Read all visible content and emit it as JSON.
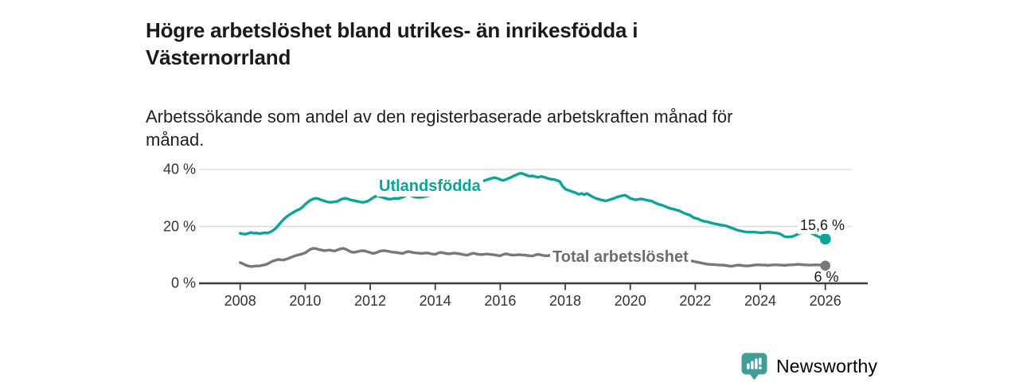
{
  "header": {
    "title": "Högre arbetslöshet bland utrikes- än inrikesfödda i Västernorrland",
    "subtitle": "Arbetssökande som andel av den registerbaserade arbetskraften månad för månad."
  },
  "footer": {
    "brand": "Newsworthy",
    "logo_icon": "bar-chart-speech-bubble",
    "brand_color": "#3f9e9a"
  },
  "colors": {
    "series_utlandsfodda": "#0ca496",
    "series_total": "#787878",
    "series_total_label": "#6d6d6d",
    "axis_line": "#3d3d3d",
    "gridline": "#d8d8d8",
    "tick_text": "#333333",
    "annotation_text": "#1a1a1a"
  },
  "chart_data": {
    "type": "line",
    "unit": "%",
    "grid": "horizontal",
    "legend_position": "inline-labels",
    "ylim": [
      0,
      40
    ],
    "x_range_years": [
      2008,
      2026.08
    ],
    "y_ticks": [
      {
        "value": 40,
        "label": "40 %"
      },
      {
        "value": 20,
        "label": "20 %"
      },
      {
        "value": 0,
        "label": "0 %"
      }
    ],
    "x_ticks": [
      {
        "value": 2008,
        "label": "2008"
      },
      {
        "value": 2010,
        "label": "2010"
      },
      {
        "value": 2012,
        "label": "2012"
      },
      {
        "value": 2014,
        "label": "2014"
      },
      {
        "value": 2016,
        "label": "2016"
      },
      {
        "value": 2018,
        "label": "2018"
      },
      {
        "value": 2020,
        "label": "2020"
      },
      {
        "value": 2022,
        "label": "2022"
      },
      {
        "value": 2024,
        "label": "2024"
      },
      {
        "value": 2026,
        "label": "2026"
      }
    ],
    "series": [
      {
        "name": "Utlandsfödda",
        "color": "#0ca496",
        "end_label": "15,6 %",
        "end_value": 15.6,
        "start_year": 2008,
        "interval_months": 1,
        "values": [
          17.6,
          17.4,
          17.3,
          17.6,
          17.9,
          17.6,
          17.7,
          17.5,
          17.6,
          17.8,
          17.7,
          18.0,
          18.5,
          19.2,
          20.3,
          21.4,
          22.4,
          23.3,
          24.0,
          24.6,
          25.2,
          25.7,
          26.1,
          26.8,
          27.8,
          28.6,
          29.3,
          29.7,
          29.9,
          29.7,
          29.3,
          29.0,
          28.7,
          28.5,
          28.6,
          28.7,
          28.9,
          29.4,
          29.8,
          29.9,
          29.6,
          29.3,
          29.1,
          28.9,
          28.7,
          28.5,
          28.6,
          28.9,
          29.4,
          30.1,
          30.6,
          30.7,
          30.4,
          30.1,
          29.8,
          29.6,
          29.7,
          29.9,
          29.8,
          30.0,
          30.3,
          30.8,
          31.1,
          30.9,
          30.5,
          30.3,
          30.2,
          30.3,
          30.5,
          30.7,
          30.9,
          31.2,
          31.6,
          32.0,
          32.3,
          32.2,
          32.0,
          32.1,
          32.4,
          32.6,
          32.8,
          33.0,
          33.3,
          33.8,
          34.4,
          34.9,
          35.3,
          35.5,
          35.7,
          35.9,
          36.1,
          36.4,
          36.7,
          37.0,
          37.2,
          36.9,
          36.5,
          36.2,
          36.5,
          36.9,
          37.3,
          37.8,
          38.2,
          38.6,
          38.7,
          38.3,
          37.9,
          37.7,
          37.8,
          37.5,
          37.3,
          37.6,
          37.4,
          37.1,
          36.8,
          36.6,
          36.5,
          36.2,
          35.8,
          34.2,
          33.2,
          32.8,
          32.5,
          32.1,
          31.8,
          31.3,
          31.6,
          31.2,
          31.6,
          31.0,
          30.5,
          30.0,
          29.7,
          29.4,
          29.2,
          29.0,
          29.3,
          29.6,
          29.9,
          30.3,
          30.6,
          30.8,
          31.0,
          30.5,
          29.9,
          29.6,
          29.4,
          29.5,
          29.7,
          29.5,
          29.3,
          29.1,
          28.9,
          28.4,
          28.0,
          27.7,
          27.4,
          27.0,
          26.6,
          26.3,
          26.1,
          25.8,
          25.6,
          25.1,
          24.6,
          24.3,
          24.0,
          23.3,
          22.9,
          22.7,
          22.2,
          21.9,
          21.7,
          21.5,
          21.2,
          21.0,
          20.8,
          20.6,
          20.4,
          20.3,
          20.0,
          19.6,
          19.3,
          18.9,
          18.6,
          18.4,
          18.2,
          18.0,
          18.0,
          18.0,
          18.0,
          17.9,
          17.8,
          17.8,
          17.9,
          18.0,
          17.9,
          17.8,
          17.7,
          17.5,
          17.0,
          16.4,
          16.3,
          16.4,
          16.5,
          16.9,
          17.4,
          17.8,
          18.1,
          18.3,
          18.0,
          17.6,
          17.1,
          16.6,
          16.2,
          15.8,
          15.6
        ]
      },
      {
        "name": "Total arbetslöshet",
        "color": "#787878",
        "end_label": "6 %",
        "end_value": 6.2,
        "start_year": 2008,
        "interval_months": 1,
        "values": [
          7.3,
          6.9,
          6.4,
          6.1,
          5.9,
          6.0,
          6.1,
          6.1,
          6.3,
          6.5,
          6.8,
          7.3,
          7.8,
          8.1,
          8.4,
          8.3,
          8.2,
          8.5,
          8.8,
          9.2,
          9.6,
          9.9,
          10.1,
          10.4,
          10.7,
          11.4,
          12.0,
          12.3,
          12.2,
          11.9,
          11.7,
          11.5,
          11.6,
          11.7,
          11.5,
          11.4,
          11.8,
          12.1,
          12.3,
          12.0,
          11.5,
          11.0,
          10.9,
          11.1,
          11.3,
          11.5,
          11.4,
          11.1,
          10.8,
          10.5,
          10.7,
          11.1,
          11.4,
          11.5,
          11.4,
          11.2,
          11.0,
          10.9,
          10.8,
          10.6,
          10.5,
          10.9,
          11.2,
          11.0,
          10.8,
          10.7,
          10.6,
          10.5,
          10.6,
          10.7,
          10.5,
          10.3,
          10.2,
          10.6,
          10.9,
          10.7,
          10.5,
          10.4,
          10.5,
          10.6,
          10.5,
          10.4,
          10.2,
          10.0,
          9.9,
          10.3,
          10.6,
          10.4,
          10.2,
          10.1,
          10.2,
          10.3,
          10.2,
          10.1,
          10.0,
          9.8,
          9.7,
          10.1,
          10.4,
          10.2,
          10.0,
          9.9,
          10.0,
          10.1,
          10.0,
          9.9,
          9.8,
          9.7,
          9.6,
          10.0,
          10.2,
          10.0,
          9.8,
          9.7,
          9.8,
          9.9,
          10.1,
          10.0,
          9.8,
          9.5,
          9.3,
          9.6,
          9.8,
          9.6,
          9.4,
          9.3,
          9.4,
          9.5,
          9.4,
          9.3,
          9.2,
          9.0,
          8.9,
          9.2,
          9.4,
          9.2,
          9.1,
          9.0,
          9.1,
          9.2,
          9.3,
          9.4,
          9.3,
          9.2,
          9.1,
          9.3,
          9.5,
          9.6,
          9.7,
          9.6,
          9.5,
          9.4,
          9.3,
          9.2,
          9.1,
          9.0,
          8.9,
          8.8,
          8.7,
          8.6,
          8.5,
          8.4,
          8.3,
          8.2,
          8.1,
          8.0,
          7.9,
          7.8,
          7.6,
          7.4,
          7.2,
          7.0,
          6.8,
          6.7,
          6.6,
          6.6,
          6.5,
          6.4,
          6.4,
          6.3,
          6.2,
          6.0,
          6.1,
          6.3,
          6.4,
          6.3,
          6.2,
          6.1,
          6.2,
          6.3,
          6.4,
          6.5,
          6.5,
          6.4,
          6.4,
          6.3,
          6.4,
          6.5,
          6.5,
          6.4,
          6.4,
          6.3,
          6.4,
          6.5,
          6.5,
          6.6,
          6.7,
          6.6,
          6.5,
          6.5,
          6.4,
          6.4,
          6.5,
          6.5,
          6.4,
          6.3,
          6.2
        ]
      }
    ]
  }
}
